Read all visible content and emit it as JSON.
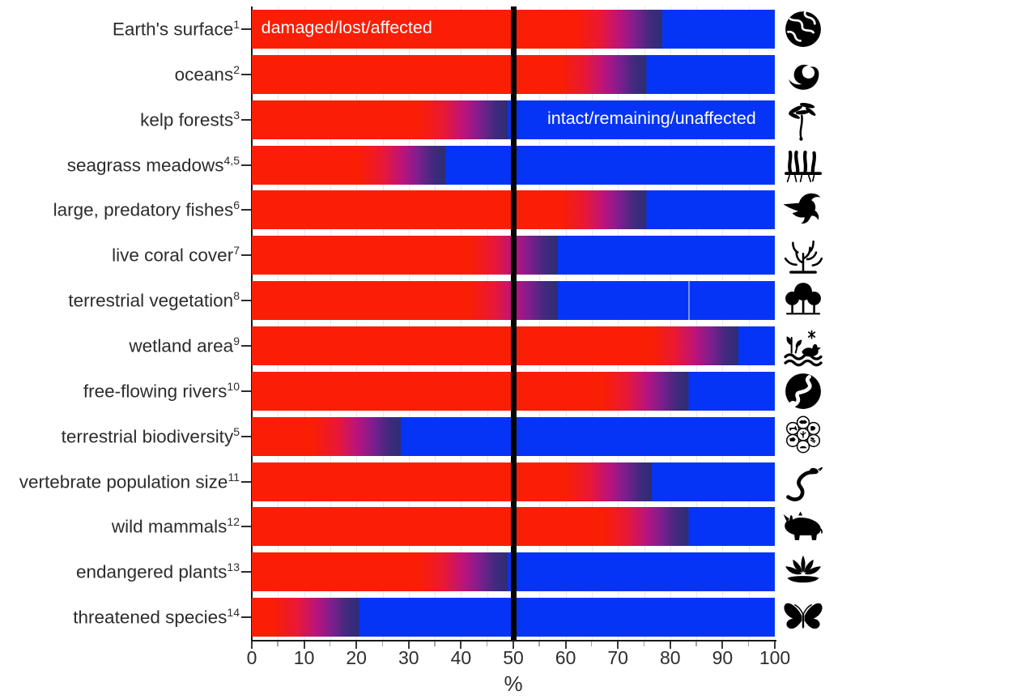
{
  "chart_data": {
    "type": "bar",
    "orientation": "horizontal",
    "xlabel": "%",
    "xlim": [
      0,
      100
    ],
    "x_major_ticks": [
      0,
      10,
      20,
      30,
      40,
      50,
      60,
      70,
      80,
      90,
      100
    ],
    "x_minor_tick_step": 5,
    "grid": "minor vertical, faint",
    "reference_line_x": 50,
    "legend_annotations": [
      {
        "text": "damaged/lost/affected",
        "row_index": 0,
        "x_pct": 1.8,
        "color": "#fdfdfd"
      },
      {
        "text": "intact/remaining/unaffected",
        "row_index": 2,
        "x_pct": 56.5,
        "color": "#fdfdfd"
      }
    ],
    "colors": {
      "damaged_red": "#fa1e04",
      "intact_blue": "#0634f6",
      "gradient_stops": [
        "#fa1e04",
        "#e91836",
        "#bc137b",
        "#7f1e8e",
        "#43297f",
        "#2c2e74"
      ],
      "reference_line": "#000000"
    },
    "value_meaning": "damaged_min = lower bound of damaged/lost/affected (solid red ends); damaged_max = upper bound (solid blue begins); gradient between shows uncertainty",
    "rows": [
      {
        "label": "Earth's surface",
        "ref": "1",
        "icon": "earth-icon",
        "damaged_min": 62,
        "damaged_max": 78.5
      },
      {
        "label": "oceans",
        "ref": "2",
        "icon": "wave-icon",
        "damaged_min": 59,
        "damaged_max": 75.5
      },
      {
        "label": "kelp forests",
        "ref": "3",
        "icon": "kelp-icon",
        "damaged_min": 32,
        "damaged_max": 49
      },
      {
        "label": "seagrass meadows",
        "ref": "4,5",
        "icon": "seagrass-icon",
        "damaged_min": 20.5,
        "damaged_max": 37
      },
      {
        "label": "large, predatory fishes",
        "ref": "6",
        "icon": "marlin-icon",
        "damaged_min": 59,
        "damaged_max": 75.5
      },
      {
        "label": "live coral cover",
        "ref": "7",
        "icon": "coral-icon",
        "damaged_min": 41.5,
        "damaged_max": 58.5
      },
      {
        "label": "terrestrial vegetation",
        "ref": "8",
        "icon": "trees-icon",
        "damaged_min": 41.5,
        "damaged_max": 58.5,
        "seam_x": 83.5
      },
      {
        "label": "wetland area",
        "ref": "9",
        "icon": "wetland-icon",
        "damaged_min": 76.5,
        "damaged_max": 93
      },
      {
        "label": "free-flowing rivers",
        "ref": "10",
        "icon": "river-icon",
        "damaged_min": 67,
        "damaged_max": 83.5
      },
      {
        "label": "terrestrial biodiversity",
        "ref": "5",
        "icon": "biodiversity-icon",
        "damaged_min": 11.5,
        "damaged_max": 28.5
      },
      {
        "label": "vertebrate population size",
        "ref": "11",
        "icon": "snake-icon",
        "damaged_min": 60,
        "damaged_max": 76.5
      },
      {
        "label": "wild mammals",
        "ref": "12",
        "icon": "rhino-icon",
        "damaged_min": 67,
        "damaged_max": 83.5
      },
      {
        "label": "endangered plants",
        "ref": "13",
        "icon": "lotus-icon",
        "damaged_min": 32,
        "damaged_max": 49
      },
      {
        "label": "threatened species",
        "ref": "14",
        "icon": "butterfly-icon",
        "damaged_min": 4,
        "damaged_max": 20.5
      }
    ]
  }
}
